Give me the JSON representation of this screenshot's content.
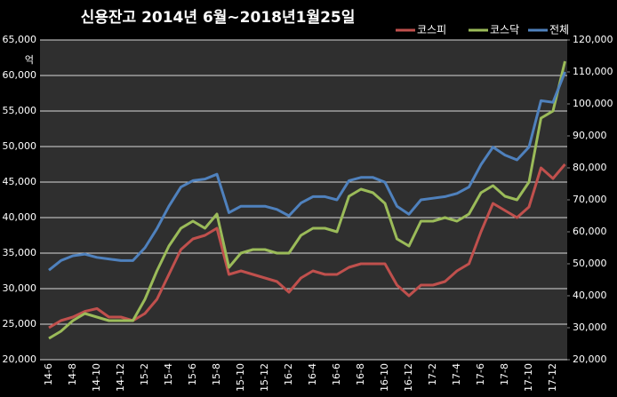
{
  "chart_data": {
    "type": "line",
    "title": "신용잔고  2014년 6월~2018년1월25일",
    "y_unit": "억",
    "categories": [
      "14-6",
      null,
      "14-8",
      null,
      "14-10",
      null,
      "14-12",
      null,
      "15-2",
      null,
      "15-4",
      null,
      "15-6",
      null,
      "15-8",
      null,
      "15-10",
      null,
      "15-12",
      null,
      "16-2",
      null,
      "16-4",
      null,
      "16-6",
      null,
      "16-8",
      null,
      "16-10",
      null,
      "16-12",
      null,
      "17-2",
      null,
      "17-4",
      null,
      "17-6",
      null,
      "17-8",
      null,
      "17-10",
      null,
      "17-12",
      null
    ],
    "series": [
      {
        "name": "코스피",
        "color": "#c0504d",
        "axis": "y",
        "values": [
          24500,
          25500,
          26000,
          26800,
          27200,
          26000,
          26000,
          25500,
          26500,
          28500,
          32000,
          35500,
          37000,
          37500,
          38500,
          32000,
          32500,
          32000,
          31500,
          31000,
          29500,
          31500,
          32500,
          32000,
          32000,
          33000,
          33500,
          33500,
          33500,
          30500,
          29000,
          30500,
          30500,
          31000,
          32500,
          33500,
          38000,
          42000,
          41000,
          40000,
          41500,
          47000,
          45500,
          47500
        ]
      },
      {
        "name": "코스닥",
        "color": "#9bbb59",
        "axis": "y",
        "values": [
          23000,
          24000,
          25500,
          26500,
          26000,
          25500,
          25500,
          25500,
          28500,
          32500,
          36000,
          38500,
          39500,
          38500,
          40500,
          33000,
          35000,
          35500,
          35500,
          35000,
          35000,
          37500,
          38500,
          38500,
          38000,
          43000,
          44000,
          43500,
          42000,
          37000,
          36000,
          39500,
          39500,
          40000,
          39500,
          40500,
          43500,
          44500,
          43000,
          42500,
          45000,
          54000,
          55000,
          62000
        ]
      },
      {
        "name": "전체",
        "color": "#4f81bd",
        "axis": "y2",
        "values": [
          48000,
          51000,
          52500,
          53000,
          52000,
          51500,
          51000,
          51000,
          55000,
          61000,
          68000,
          74000,
          76000,
          76500,
          78000,
          66000,
          68000,
          68000,
          68000,
          67000,
          65000,
          69000,
          71000,
          71000,
          70000,
          76000,
          77000,
          77000,
          75500,
          68000,
          65500,
          70000,
          70500,
          71000,
          72000,
          74000,
          81000,
          86500,
          84000,
          82500,
          86500,
          101000,
          100500,
          110000
        ]
      }
    ],
    "ylim": [
      20000,
      65000
    ],
    "yticks": [
      {
        "value": 20000,
        "label": "20,000"
      },
      {
        "value": 25000,
        "label": "25,000"
      },
      {
        "value": 30000,
        "label": "30,000"
      },
      {
        "value": 35000,
        "label": "35,000"
      },
      {
        "value": 40000,
        "label": "40,000"
      },
      {
        "value": 45000,
        "label": "45,000"
      },
      {
        "value": 50000,
        "label": "50,000"
      },
      {
        "value": 55000,
        "label": "55,000"
      },
      {
        "value": 60000,
        "label": "60,000"
      },
      {
        "value": 65000,
        "label": "65,000"
      }
    ],
    "y2lim": [
      20000,
      120000
    ],
    "y2ticks": [
      {
        "value": 20000,
        "label": "20,000"
      },
      {
        "value": 30000,
        "label": "30,000"
      },
      {
        "value": 40000,
        "label": "40,000"
      },
      {
        "value": 50000,
        "label": "50,000"
      },
      {
        "value": 60000,
        "label": "60,000"
      },
      {
        "value": 70000,
        "label": "70,000"
      },
      {
        "value": 80000,
        "label": "80,000"
      },
      {
        "value": 90000,
        "label": "90,000"
      },
      {
        "value": 100000,
        "label": "100,000"
      },
      {
        "value": 110000,
        "label": "110,000"
      },
      {
        "value": 120000,
        "label": "120,000"
      }
    ],
    "grid": true,
    "legend": "top-right"
  }
}
